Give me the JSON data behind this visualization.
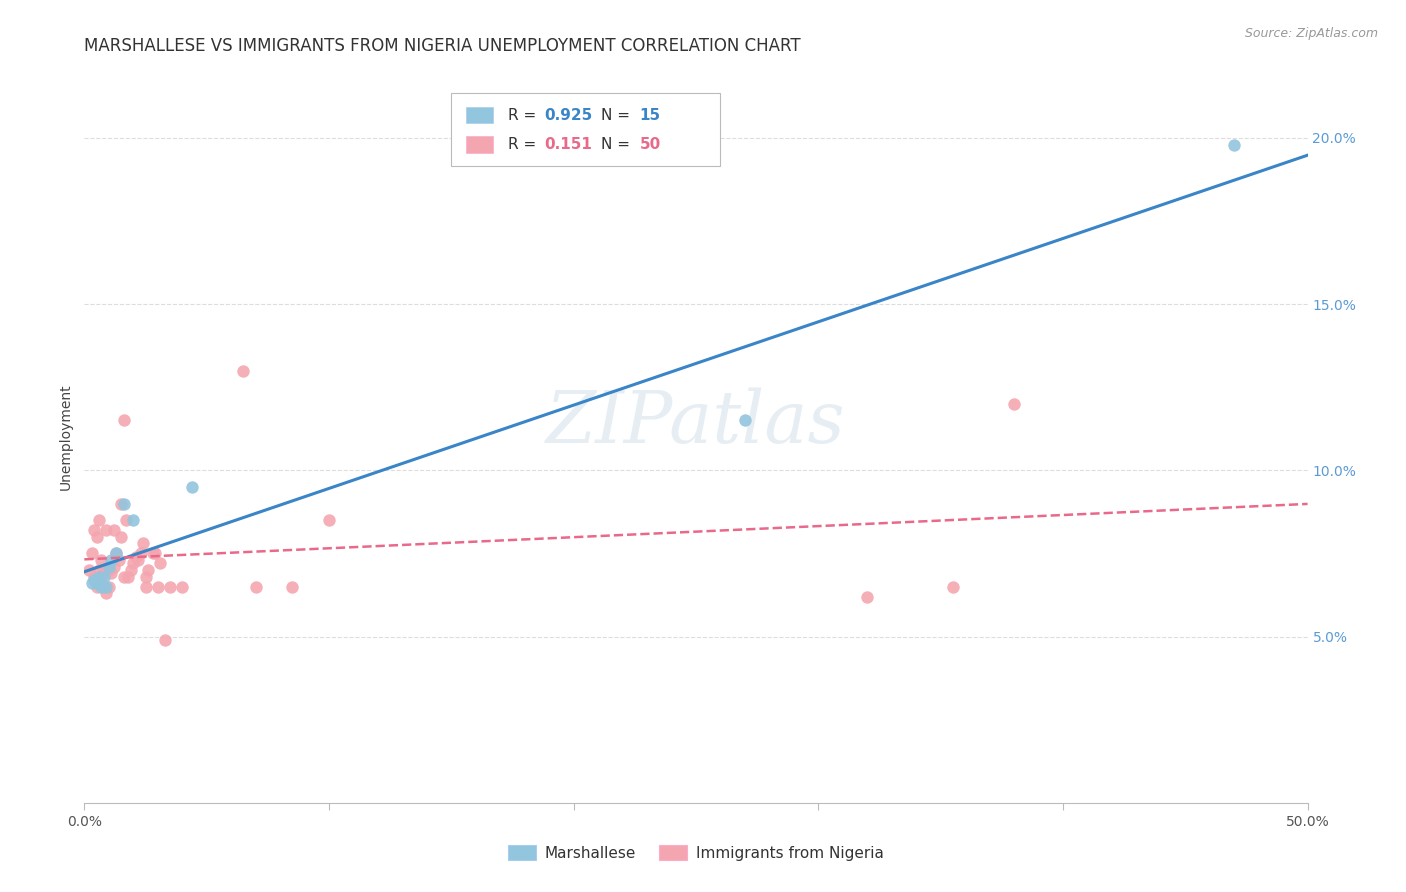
{
  "title": "MARSHALLESE VS IMMIGRANTS FROM NIGERIA UNEMPLOYMENT CORRELATION CHART",
  "source": "Source: ZipAtlas.com",
  "ylabel": "Unemployment",
  "xmin": 0.0,
  "xmax": 0.5,
  "ymin": 0.0,
  "ymax": 0.22,
  "blue_color": "#92c5de",
  "pink_color": "#f4a6b0",
  "blue_line_color": "#3a85c7",
  "pink_line_color": "#e8698a",
  "watermark": "ZIPatlas",
  "marshallese_x": [
    0.003,
    0.004,
    0.005,
    0.006,
    0.007,
    0.008,
    0.009,
    0.01,
    0.011,
    0.013,
    0.016,
    0.02,
    0.044,
    0.27,
    0.47
  ],
  "marshallese_y": [
    0.066,
    0.067,
    0.066,
    0.068,
    0.065,
    0.068,
    0.065,
    0.071,
    0.073,
    0.075,
    0.09,
    0.085,
    0.095,
    0.115,
    0.198
  ],
  "nigeria_x": [
    0.002,
    0.003,
    0.004,
    0.004,
    0.005,
    0.005,
    0.006,
    0.006,
    0.007,
    0.007,
    0.008,
    0.008,
    0.009,
    0.009,
    0.01,
    0.01,
    0.011,
    0.012,
    0.012,
    0.013,
    0.014,
    0.015,
    0.015,
    0.016,
    0.016,
    0.017,
    0.018,
    0.019,
    0.02,
    0.021,
    0.022,
    0.023,
    0.024,
    0.025,
    0.025,
    0.026,
    0.028,
    0.029,
    0.03,
    0.031,
    0.033,
    0.035,
    0.04,
    0.065,
    0.07,
    0.085,
    0.1,
    0.32,
    0.355,
    0.38
  ],
  "nigeria_y": [
    0.07,
    0.075,
    0.068,
    0.082,
    0.065,
    0.08,
    0.07,
    0.085,
    0.068,
    0.073,
    0.065,
    0.07,
    0.063,
    0.082,
    0.065,
    0.07,
    0.069,
    0.071,
    0.082,
    0.075,
    0.073,
    0.08,
    0.09,
    0.068,
    0.115,
    0.085,
    0.068,
    0.07,
    0.072,
    0.074,
    0.073,
    0.075,
    0.078,
    0.068,
    0.065,
    0.07,
    0.075,
    0.075,
    0.065,
    0.072,
    0.049,
    0.065,
    0.065,
    0.13,
    0.065,
    0.065,
    0.085,
    0.062,
    0.065,
    0.12
  ],
  "marker_size": 80,
  "title_fontsize": 12,
  "axis_fontsize": 10
}
